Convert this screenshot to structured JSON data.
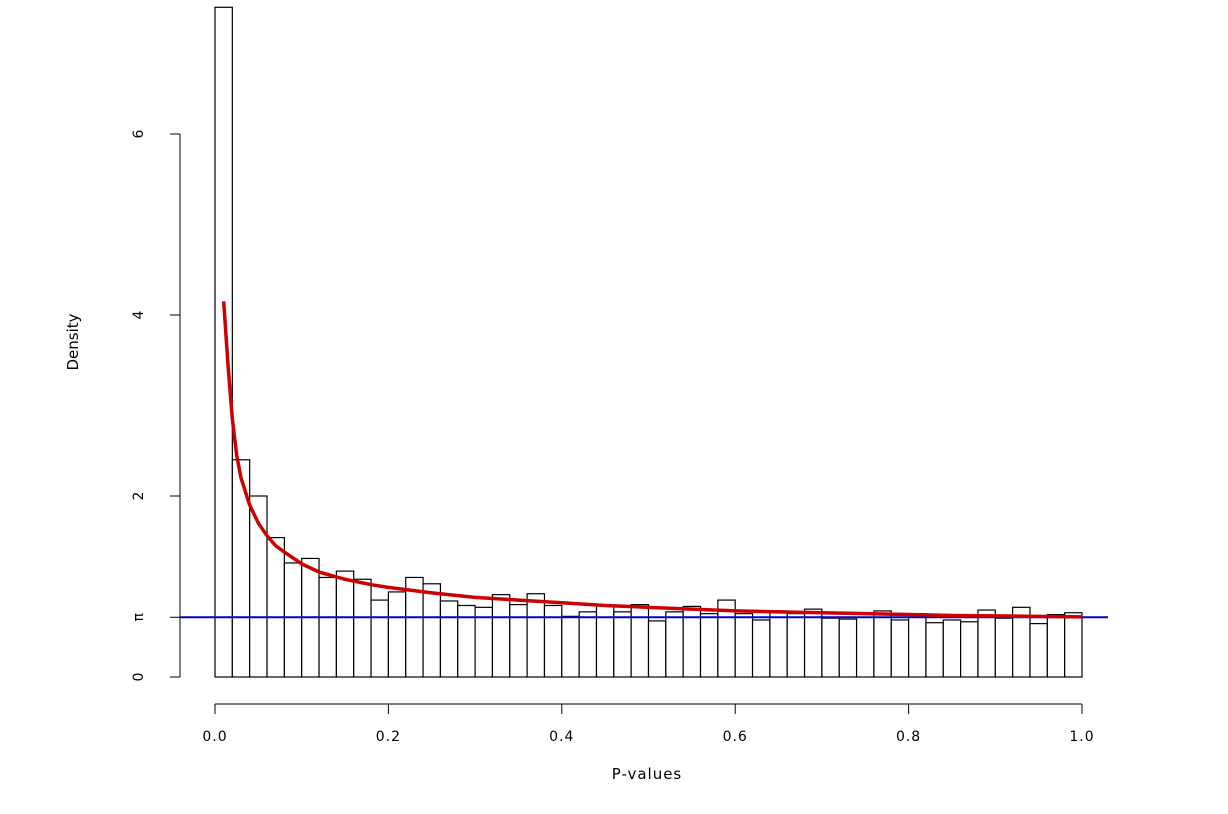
{
  "chart_data": {
    "type": "bar",
    "xlabel": "P-values",
    "ylabel": "Density",
    "xlim": [
      0,
      1
    ],
    "ylim": [
      0,
      7.4
    ],
    "x_ticks": [
      {
        "value": 0.0,
        "label": "0.0"
      },
      {
        "value": 0.2,
        "label": "0.2"
      },
      {
        "value": 0.4,
        "label": "0.4"
      },
      {
        "value": 0.6,
        "label": "0.6"
      },
      {
        "value": 0.8,
        "label": "0.8"
      },
      {
        "value": 1.0,
        "label": "1.0"
      }
    ],
    "y_ticks": [
      {
        "value": 0,
        "label": "0"
      },
      {
        "value": 0.66,
        "label": "π"
      },
      {
        "value": 2,
        "label": "2"
      },
      {
        "value": 4,
        "label": "4"
      },
      {
        "value": 6,
        "label": "6"
      }
    ],
    "bin_width": 0.02,
    "bin_starts": [
      0.0,
      0.02,
      0.04,
      0.06,
      0.08,
      0.1,
      0.12,
      0.14,
      0.16,
      0.18,
      0.2,
      0.22,
      0.24,
      0.26,
      0.28,
      0.3,
      0.32,
      0.34,
      0.36,
      0.38,
      0.4,
      0.42,
      0.44,
      0.46,
      0.48,
      0.5,
      0.52,
      0.54,
      0.56,
      0.58,
      0.6,
      0.62,
      0.64,
      0.66,
      0.68,
      0.7,
      0.72,
      0.74,
      0.76,
      0.78,
      0.8,
      0.82,
      0.84,
      0.86,
      0.88,
      0.9,
      0.92,
      0.94,
      0.96,
      0.98
    ],
    "densities": [
      7.4,
      2.4,
      2.0,
      1.54,
      1.26,
      1.31,
      1.1,
      1.17,
      1.08,
      0.85,
      0.94,
      1.1,
      1.03,
      0.84,
      0.79,
      0.77,
      0.91,
      0.8,
      0.92,
      0.79,
      0.67,
      0.72,
      0.79,
      0.72,
      0.8,
      0.62,
      0.72,
      0.78,
      0.7,
      0.85,
      0.7,
      0.63,
      0.73,
      0.7,
      0.75,
      0.65,
      0.64,
      0.66,
      0.73,
      0.63,
      0.7,
      0.6,
      0.63,
      0.61,
      0.74,
      0.65,
      0.77,
      0.59,
      0.69,
      0.71
    ],
    "fitted_curve": {
      "color": "#cc0000",
      "x": [
        0.01,
        0.015,
        0.02,
        0.025,
        0.03,
        0.04,
        0.05,
        0.06,
        0.07,
        0.08,
        0.1,
        0.12,
        0.15,
        0.18,
        0.2,
        0.25,
        0.3,
        0.35,
        0.4,
        0.45,
        0.5,
        0.55,
        0.6,
        0.65,
        0.7,
        0.75,
        0.8,
        0.85,
        0.9,
        0.95,
        1.0
      ],
      "y": [
        4.15,
        3.45,
        2.85,
        2.45,
        2.2,
        1.9,
        1.7,
        1.56,
        1.45,
        1.38,
        1.25,
        1.16,
        1.08,
        1.02,
        0.99,
        0.93,
        0.88,
        0.85,
        0.82,
        0.79,
        0.77,
        0.75,
        0.73,
        0.72,
        0.71,
        0.7,
        0.69,
        0.68,
        0.675,
        0.67,
        0.665
      ]
    },
    "pi0_line": {
      "value": 0.66,
      "color": "#0000cc"
    }
  }
}
